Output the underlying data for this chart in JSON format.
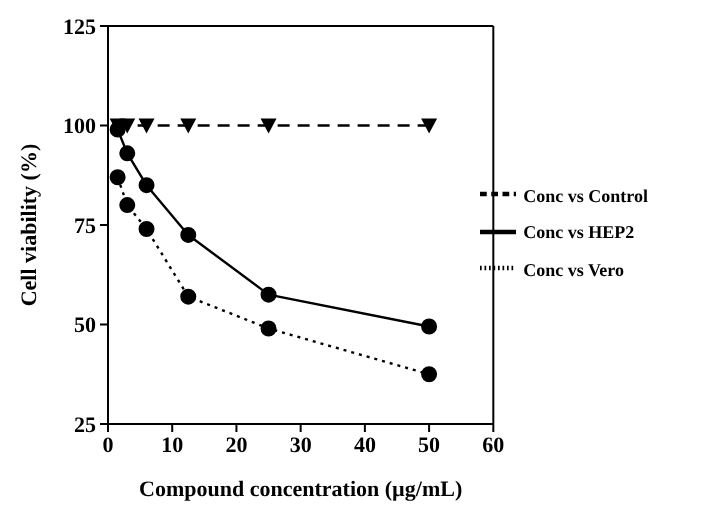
{
  "chart_data": {
    "type": "line",
    "xlabel": "Compound concentration (µg/mL)",
    "ylabel": "Cell viability (%)",
    "xlim": [
      0,
      60
    ],
    "xticks": [
      0,
      10,
      20,
      30,
      40,
      50,
      60
    ],
    "ylim": [
      25,
      125
    ],
    "yticks": [
      25,
      50,
      75,
      100,
      125
    ],
    "legend": "right",
    "grid": false,
    "series": [
      {
        "name": "Conc vs HEP2",
        "color": "#000000",
        "x": [
          1.5,
          3,
          6,
          12.5,
          25,
          50
        ],
        "values": [
          99,
          93,
          85,
          72.5,
          57.5,
          49.5
        ],
        "marker": "circle",
        "line_style": "solid"
      },
      {
        "name": "Conc vs Vero",
        "color": "#000000",
        "x": [
          1.5,
          3,
          6,
          12.5,
          25,
          50
        ],
        "values": [
          87,
          80,
          74,
          57,
          49,
          37.5
        ],
        "marker": "circle",
        "line_style": "dotted"
      },
      {
        "name": "Conc vs Control",
        "color": "#000000",
        "x": [
          1.5,
          3,
          6,
          12.5,
          25,
          50
        ],
        "values": [
          100,
          100,
          100,
          100,
          100,
          100
        ],
        "marker": "triangle",
        "line_style": "dashed"
      }
    ]
  }
}
